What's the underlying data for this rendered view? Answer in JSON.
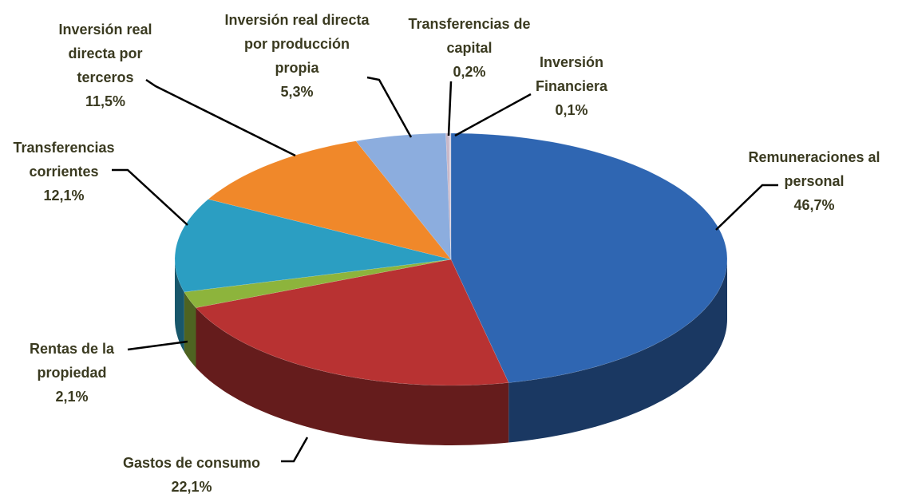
{
  "chart_data": {
    "type": "pie",
    "categories": [
      "Remuneraciones al personal",
      "Gastos de consumo",
      "Rentas de la propiedad",
      "Transferencias corrientes",
      "Inversión real directa por terceros",
      "Inversión real directa por producción propia",
      "Transferencias de capital",
      "Inversión Financiera"
    ],
    "values": [
      46.7,
      22.1,
      2.1,
      12.1,
      11.5,
      5.3,
      0.2,
      0.1
    ],
    "value_labels": [
      "46,7%",
      "22,1%",
      "2,1%",
      "12,1%",
      "11,5%",
      "5,3%",
      "0,2%",
      "0,1%"
    ],
    "colors": [
      "#2f66b2",
      "#b83232",
      "#8db43c",
      "#2b9ec2",
      "#f0882a",
      "#8cadde",
      "#c9b8c8",
      "#d9d3e3"
    ]
  }
}
